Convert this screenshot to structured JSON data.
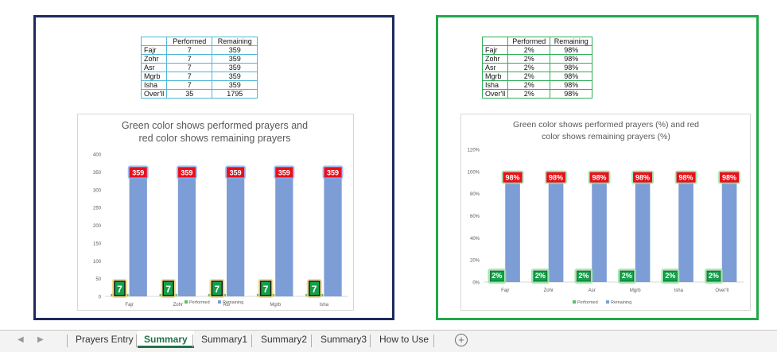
{
  "left_panel": {
    "table": {
      "headers": [
        "",
        "Performed",
        "Remaining"
      ],
      "rows": [
        [
          "Fajr",
          "7",
          "359"
        ],
        [
          "Zohr",
          "7",
          "359"
        ],
        [
          "Asr",
          "7",
          "359"
        ],
        [
          "Mgrb",
          "7",
          "359"
        ],
        [
          "Isha",
          "7",
          "359"
        ],
        [
          "Over'll",
          "35",
          "1795"
        ]
      ]
    }
  },
  "right_panel": {
    "table": {
      "headers": [
        "",
        "Performed",
        "Remaining"
      ],
      "rows": [
        [
          "Fajr",
          "2%",
          "98%"
        ],
        [
          "Zohr",
          "2%",
          "98%"
        ],
        [
          "Asr",
          "2%",
          "98%"
        ],
        [
          "Mgrb",
          "2%",
          "98%"
        ],
        [
          "Isha",
          "2%",
          "98%"
        ],
        [
          "Over'll",
          "2%",
          "98%"
        ]
      ]
    }
  },
  "chart_data": [
    {
      "type": "bar",
      "title": "Green color shows performed prayers and red color shows remaining prayers",
      "title_lines": [
        "Green color shows performed prayers and",
        "red color shows remaining prayers"
      ],
      "categories": [
        "Fajr",
        "Zohr",
        "Asr",
        "Mgrb",
        "Isha"
      ],
      "series": [
        {
          "name": "Performed",
          "values": [
            7,
            7,
            7,
            7,
            7
          ],
          "color": "#5bbf6a",
          "label_bg": "#13a04a",
          "glow": "#f2d477"
        },
        {
          "name": "Remaining",
          "values": [
            359,
            359,
            359,
            359,
            359
          ],
          "color": "#7d9dd6",
          "label_bg": "#e8111a",
          "glow": "#86a8f4"
        }
      ],
      "data_labels": [
        [
          "7",
          "7",
          "7",
          "7",
          "7"
        ],
        [
          "359",
          "359",
          "359",
          "359",
          "359"
        ]
      ],
      "ylim": [
        0,
        400
      ],
      "yticks": [
        "0",
        "50",
        "100",
        "150",
        "200",
        "250",
        "300",
        "350",
        "400"
      ],
      "legend_position": "bottom",
      "grid": false
    },
    {
      "type": "bar",
      "title": "Green color shows performed prayers (%) and red color shows remaining prayers (%)",
      "title_lines": [
        "Green color shows performed prayers (%) and red",
        "color shows remaining prayers (%)"
      ],
      "categories": [
        "Fajr",
        "Zohr",
        "Asr",
        "Mgrb",
        "Isha",
        "Over'll"
      ],
      "series": [
        {
          "name": "Performed",
          "values": [
            2,
            2,
            2,
            2,
            2,
            2
          ],
          "color": "#5bbf6a",
          "label_bg": "#13a04a",
          "glow": "#8ee2a0"
        },
        {
          "name": "Remaining",
          "values": [
            98,
            98,
            98,
            98,
            98,
            98
          ],
          "color": "#7d9dd6",
          "label_bg": "#e8111a",
          "glow": "#8ee2a0"
        }
      ],
      "data_labels": [
        [
          "2%",
          "2%",
          "2%",
          "2%",
          "2%",
          "2%"
        ],
        [
          "98%",
          "98%",
          "98%",
          "98%",
          "98%",
          "98%"
        ]
      ],
      "ylim": [
        0,
        120
      ],
      "yticks": [
        "0%",
        "20%",
        "40%",
        "60%",
        "80%",
        "100%",
        "120%"
      ],
      "legend_position": "bottom",
      "grid": false
    }
  ],
  "tabbar": {
    "prev_icon": "chevron-left-icon",
    "next_icon": "chevron-right-icon",
    "tabs": [
      "Prayers Entry",
      "Summary",
      "Summary1",
      "Summary2",
      "Summary3",
      "How to Use"
    ],
    "active_tab": "Summary",
    "active_color": "#217346",
    "add_icon": "plus-circle-icon"
  }
}
